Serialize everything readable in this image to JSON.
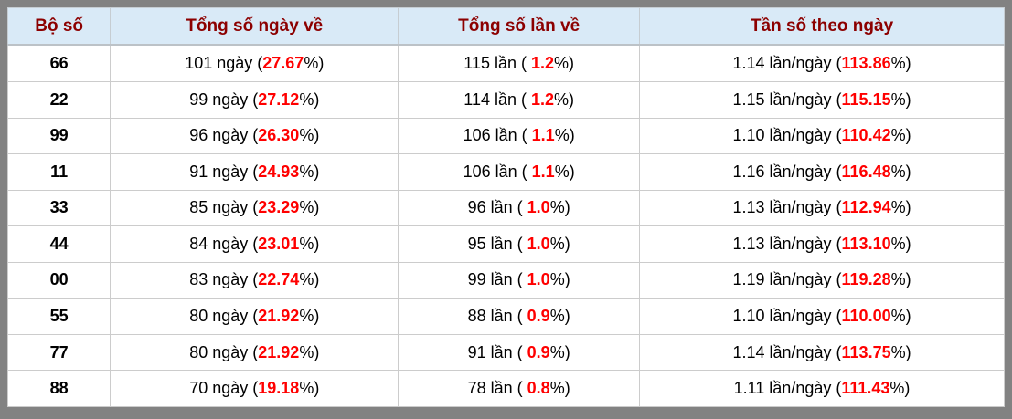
{
  "colors": {
    "frame_gray": "#828282",
    "header_bg": "#d9eaf7",
    "header_text": "#8c0000",
    "accent_red": "#ff0000",
    "cell_border": "#cccccc",
    "body_text": "#000000"
  },
  "table": {
    "headers": [
      "Bộ số",
      "Tổng số ngày về",
      "Tổng số lần về",
      "Tần số theo ngày"
    ],
    "rows": [
      {
        "pair": "66",
        "days_pre": "101 ngày (",
        "days_red": "27.67",
        "days_post": "%)",
        "times_pre": "115 lần ( ",
        "times_red": "1.2",
        "times_post": "%)",
        "freq_pre": "1.14 lần/ngày (",
        "freq_red": "113.86",
        "freq_post": "%)"
      },
      {
        "pair": "22",
        "days_pre": "99 ngày (",
        "days_red": "27.12",
        "days_post": "%)",
        "times_pre": "114 lần ( ",
        "times_red": "1.2",
        "times_post": "%)",
        "freq_pre": "1.15 lần/ngày (",
        "freq_red": "115.15",
        "freq_post": "%)"
      },
      {
        "pair": "99",
        "days_pre": "96 ngày (",
        "days_red": "26.30",
        "days_post": "%)",
        "times_pre": "106 lần ( ",
        "times_red": "1.1",
        "times_post": "%)",
        "freq_pre": "1.10 lần/ngày (",
        "freq_red": "110.42",
        "freq_post": "%)"
      },
      {
        "pair": "11",
        "days_pre": "91 ngày (",
        "days_red": "24.93",
        "days_post": "%)",
        "times_pre": "106 lần ( ",
        "times_red": "1.1",
        "times_post": "%)",
        "freq_pre": "1.16 lần/ngày (",
        "freq_red": "116.48",
        "freq_post": "%)"
      },
      {
        "pair": "33",
        "days_pre": "85 ngày (",
        "days_red": "23.29",
        "days_post": "%)",
        "times_pre": "96 lần ( ",
        "times_red": "1.0",
        "times_post": "%)",
        "freq_pre": "1.13 lần/ngày (",
        "freq_red": "112.94",
        "freq_post": "%)"
      },
      {
        "pair": "44",
        "days_pre": "84 ngày (",
        "days_red": "23.01",
        "days_post": "%)",
        "times_pre": "95 lần ( ",
        "times_red": "1.0",
        "times_post": "%)",
        "freq_pre": "1.13 lần/ngày (",
        "freq_red": "113.10",
        "freq_post": "%)"
      },
      {
        "pair": "00",
        "days_pre": "83 ngày (",
        "days_red": "22.74",
        "days_post": "%)",
        "times_pre": "99 lần ( ",
        "times_red": "1.0",
        "times_post": "%)",
        "freq_pre": "1.19 lần/ngày (",
        "freq_red": "119.28",
        "freq_post": "%)"
      },
      {
        "pair": "55",
        "days_pre": "80 ngày (",
        "days_red": "21.92",
        "days_post": "%)",
        "times_pre": "88 lần ( ",
        "times_red": "0.9",
        "times_post": "%)",
        "freq_pre": "1.10 lần/ngày (",
        "freq_red": "110.00",
        "freq_post": "%)"
      },
      {
        "pair": "77",
        "days_pre": "80 ngày (",
        "days_red": "21.92",
        "days_post": "%)",
        "times_pre": "91 lần ( ",
        "times_red": "0.9",
        "times_post": "%)",
        "freq_pre": "1.14 lần/ngày (",
        "freq_red": "113.75",
        "freq_post": "%)"
      },
      {
        "pair": "88",
        "days_pre": "70 ngày (",
        "days_red": "19.18",
        "days_post": "%)",
        "times_pre": "78 lần ( ",
        "times_red": "0.8",
        "times_post": "%)",
        "freq_pre": "1.11 lần/ngày (",
        "freq_red": "111.43",
        "freq_post": "%)"
      }
    ]
  },
  "chart_data": {
    "type": "table",
    "columns": [
      "Bộ số",
      "Tổng số ngày về",
      "Tổng số lần về",
      "Tần số theo ngày"
    ],
    "rows": [
      [
        "66",
        "101 ngày (27.67%)",
        "115 lần ( 1.2%)",
        "1.14 lần/ngày (113.86%)"
      ],
      [
        "22",
        "99 ngày (27.12%)",
        "114 lần ( 1.2%)",
        "1.15 lần/ngày (115.15%)"
      ],
      [
        "99",
        "96 ngày (26.30%)",
        "106 lần ( 1.1%)",
        "1.10 lần/ngày (110.42%)"
      ],
      [
        "11",
        "91 ngày (24.93%)",
        "106 lần ( 1.1%)",
        "1.16 lần/ngày (116.48%)"
      ],
      [
        "33",
        "85 ngày (23.29%)",
        "96 lần ( 1.0%)",
        "1.13 lần/ngày (112.94%)"
      ],
      [
        "44",
        "84 ngày (23.01%)",
        "95 lần ( 1.0%)",
        "1.13 lần/ngày (113.10%)"
      ],
      [
        "00",
        "83 ngày (22.74%)",
        "99 lần ( 1.0%)",
        "1.19 lần/ngày (119.28%)"
      ],
      [
        "55",
        "80 ngày (21.92%)",
        "88 lần ( 0.9%)",
        "1.10 lần/ngày (110.00%)"
      ],
      [
        "77",
        "80 ngày (21.92%)",
        "91 lần ( 0.9%)",
        "1.14 lần/ngày (113.75%)"
      ],
      [
        "88",
        "70 ngày (19.18%)",
        "78 lần ( 0.8%)",
        "1.11 lần/ngày (111.43%)"
      ]
    ]
  }
}
